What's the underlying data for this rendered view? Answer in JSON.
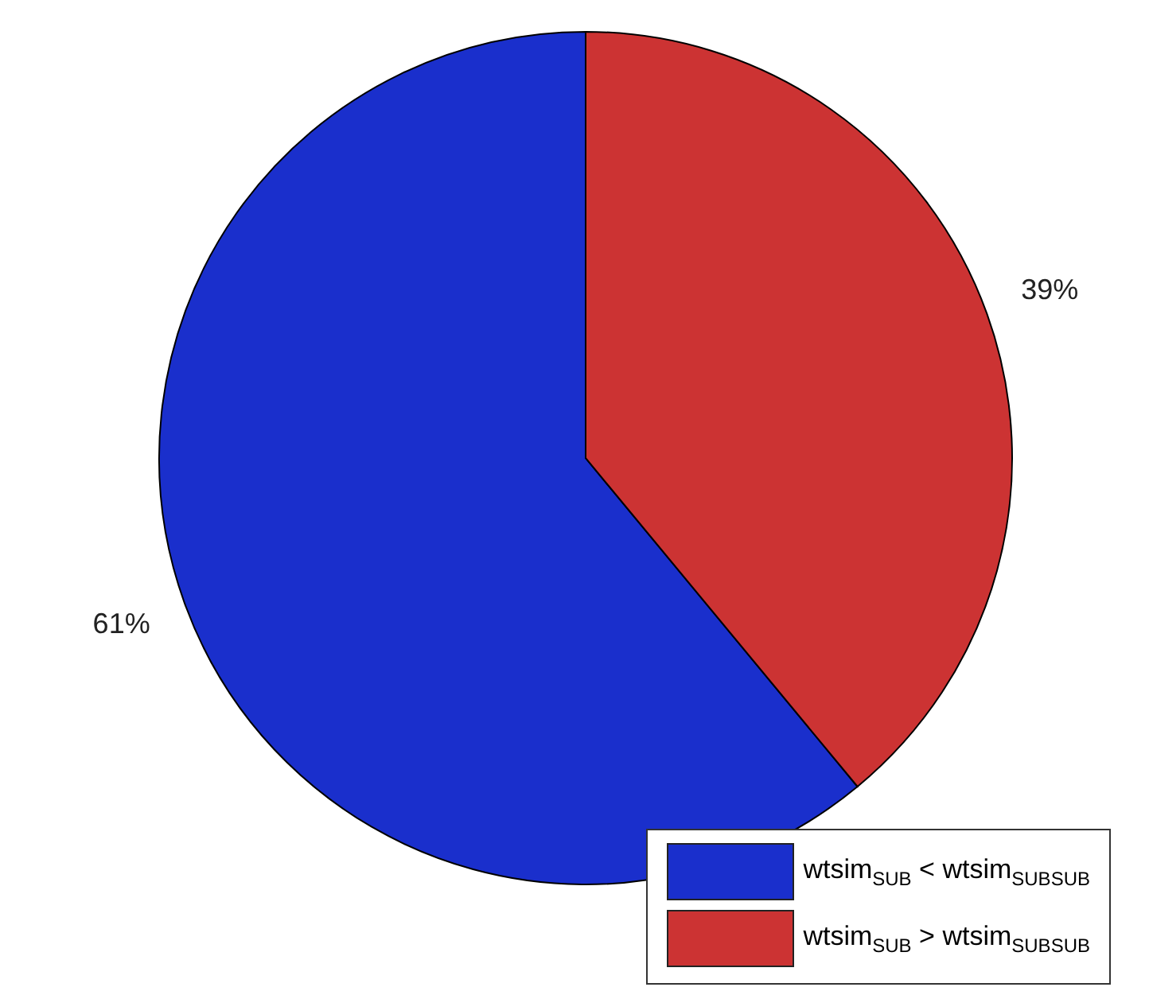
{
  "chart_data": {
    "type": "pie",
    "categories": [
      "wtsim$_{SUB}$ < wtsim$_{SUBSUB}$",
      "wtsim$_{SUB}$ > wtsim$_{SUBSUB}$"
    ],
    "values": [
      61,
      39
    ],
    "colors": [
      "#1a2fcc",
      "#cc3333"
    ],
    "value_labels": [
      "61%",
      "39%"
    ],
    "legend": "bottom right"
  }
}
